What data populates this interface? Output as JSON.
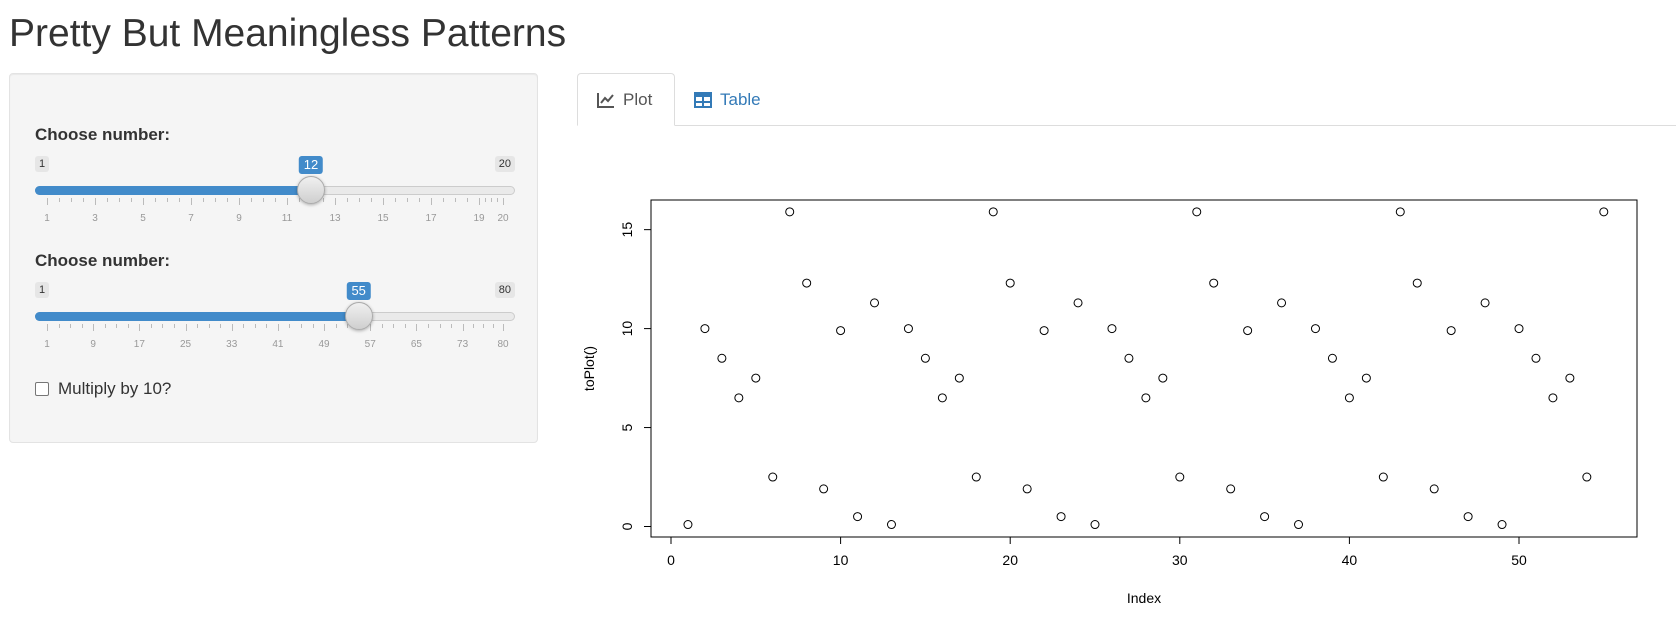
{
  "page": {
    "title": "Pretty But Meaningless Patterns"
  },
  "sidebar": {
    "slider1": {
      "label": "Choose number:",
      "min": 1,
      "max": 20,
      "value": 12,
      "min_label": "1",
      "max_label": "20",
      "value_label": "12",
      "tick_labels": [
        "1",
        "3",
        "5",
        "7",
        "9",
        "11",
        "13",
        "15",
        "17",
        "19",
        "20"
      ]
    },
    "slider2": {
      "label": "Choose number:",
      "min": 1,
      "max": 80,
      "value": 55,
      "min_label": "1",
      "max_label": "80",
      "value_label": "55",
      "tick_labels": [
        "1",
        "9",
        "17",
        "25",
        "33",
        "41",
        "49",
        "57",
        "65",
        "73",
        "80"
      ]
    },
    "checkbox": {
      "label": "Multiply by 10?",
      "checked": false
    }
  },
  "tabs": [
    {
      "label": "Plot",
      "icon": "line-chart-icon",
      "active": true
    },
    {
      "label": "Table",
      "icon": "table-icon",
      "active": false
    }
  ],
  "colors": {
    "accent": "#428bca",
    "link": "#337ab7"
  },
  "chart_data": {
    "type": "scatter",
    "xlabel": "Index",
    "ylabel": "toPlot()",
    "xlim": [
      0,
      57
    ],
    "ylim": [
      0,
      16
    ],
    "xticks": [
      "0",
      "10",
      "20",
      "30",
      "40",
      "50"
    ],
    "yticks": [
      "0",
      "5",
      "10",
      "15"
    ],
    "x": [
      1,
      2,
      3,
      4,
      5,
      6,
      7,
      8,
      9,
      10,
      11,
      12,
      13,
      14,
      15,
      16,
      17,
      18,
      19,
      20,
      21,
      22,
      23,
      24,
      25,
      26,
      27,
      28,
      29,
      30,
      31,
      32,
      33,
      34,
      35,
      36,
      37,
      38,
      39,
      40,
      41,
      42,
      43,
      44,
      45,
      46,
      47,
      48,
      49,
      50,
      51,
      52,
      53,
      54,
      55
    ],
    "y": [
      0.1,
      10.0,
      8.5,
      6.5,
      7.5,
      2.5,
      15.9,
      12.3,
      1.9,
      9.9,
      0.5,
      11.3,
      0.1,
      10.0,
      8.5,
      6.5,
      7.5,
      2.5,
      15.9,
      12.3,
      1.9,
      9.9,
      0.5,
      11.3,
      0.1,
      10.0,
      8.5,
      6.5,
      7.5,
      2.5,
      15.9,
      12.3,
      1.9,
      9.9,
      0.5,
      11.3,
      0.1,
      10.0,
      8.5,
      6.5,
      7.5,
      2.5,
      15.9,
      12.3,
      1.9,
      9.9,
      0.5,
      11.3,
      0.1,
      10.0,
      8.5,
      6.5,
      7.5,
      2.5,
      15.9
    ]
  }
}
